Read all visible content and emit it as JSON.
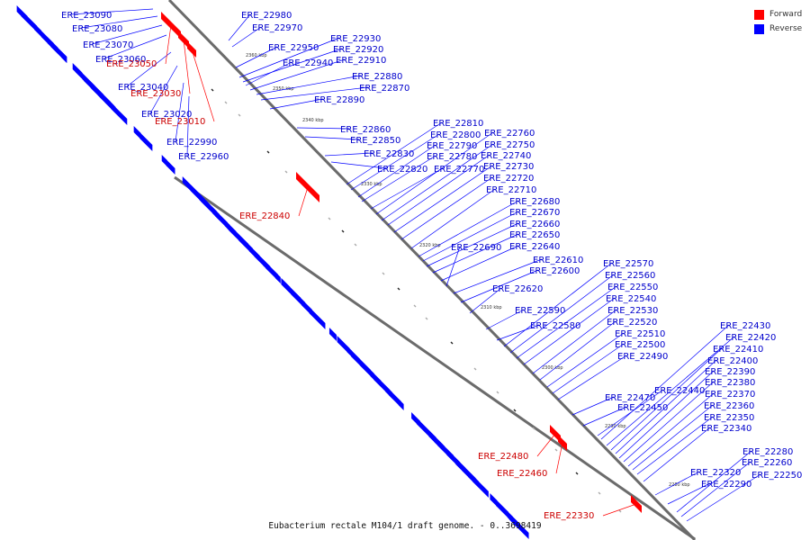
{
  "caption": "Eubacterium rectale M104/1 draft genome. - 0..3698419",
  "legend": [
    {
      "label": "Forward",
      "color": "#ff0000"
    },
    {
      "label": "Reverse",
      "color": "#0000ff"
    }
  ],
  "colors": {
    "forward": "#ff0000",
    "reverse": "#0000ff",
    "backbone": "#6b6b6b"
  },
  "ticks": [
    "2360 kbp",
    "2350 kbp",
    "2340 kbp",
    "2330 kbp",
    "2320 kbp",
    "2310 kbp",
    "2300 kbp",
    "2290 kbp",
    "2280 kbp"
  ],
  "genes_reverse": [
    "ERE_23090",
    "ERE_23080",
    "ERE_23070",
    "ERE_23060",
    "ERE_23040",
    "ERE_23020",
    "ERE_22990",
    "ERE_22960",
    "ERE_22980",
    "ERE_22970",
    "ERE_22950",
    "ERE_22930",
    "ERE_22920",
    "ERE_22940",
    "ERE_22910",
    "ERE_22880",
    "ERE_22870",
    "ERE_22890",
    "ERE_22860",
    "ERE_22850",
    "ERE_22830",
    "ERE_22820",
    "ERE_22810",
    "ERE_22800",
    "ERE_22790",
    "ERE_22780",
    "ERE_22770",
    "ERE_22760",
    "ERE_22750",
    "ERE_22740",
    "ERE_22730",
    "ERE_22720",
    "ERE_22710",
    "ERE_22680",
    "ERE_22670",
    "ERE_22660",
    "ERE_22650",
    "ERE_22640",
    "ERE_22690",
    "ERE_22610",
    "ERE_22600",
    "ERE_22620",
    "ERE_22590",
    "ERE_22580",
    "ERE_22570",
    "ERE_22560",
    "ERE_22550",
    "ERE_22540",
    "ERE_22530",
    "ERE_22520",
    "ERE_22510",
    "ERE_22500",
    "ERE_22490",
    "ERE_22470",
    "ERE_22450",
    "ERE_22440",
    "ERE_22430",
    "ERE_22420",
    "ERE_22410",
    "ERE_22400",
    "ERE_22390",
    "ERE_22380",
    "ERE_22370",
    "ERE_22360",
    "ERE_22350",
    "ERE_22340",
    "ERE_22320",
    "ERE_22290",
    "ERE_22280",
    "ERE_22260",
    "ERE_22250"
  ],
  "genes_forward": [
    "ERE_23050",
    "ERE_23030",
    "ERE_23010",
    "ERE_22840",
    "ERE_22480",
    "ERE_22460",
    "ERE_22330"
  ]
}
